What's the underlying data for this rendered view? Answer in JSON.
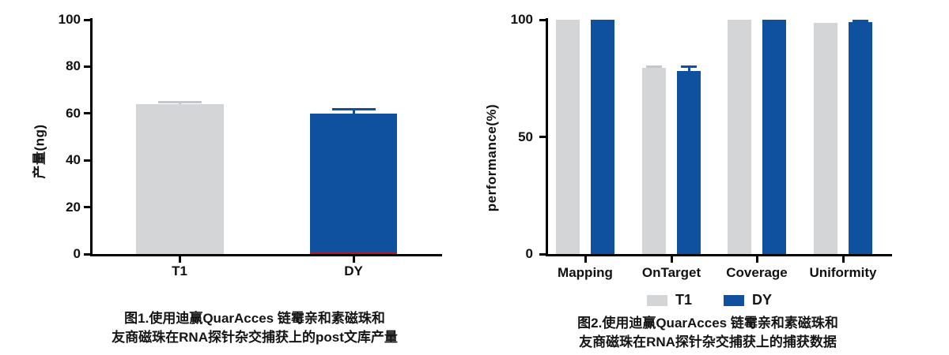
{
  "chart_data": [
    {
      "type": "bar",
      "ylabel": "产量(ng)",
      "ylim": [
        0,
        100
      ],
      "yticks": [
        0,
        20,
        40,
        60,
        80,
        100
      ],
      "grid": false,
      "categories": [
        "T1",
        "DY"
      ],
      "values": [
        64,
        60
      ],
      "errors": [
        1,
        2
      ],
      "bar_colors": [
        "#d3d5d7",
        "#10519f"
      ],
      "error_colors": [
        "#c3c6ca",
        "#10519f"
      ],
      "base_strip_color": "#a81e22",
      "base_strip_on": "DY",
      "title_line1": "图1.使用迪赢QuarAcces 链霉亲和素磁珠和",
      "title_line2": "友商磁珠在RNA探针杂交捕获上的post文库产量"
    },
    {
      "type": "bar",
      "ylabel": "performance(%)",
      "ylim": [
        0,
        100
      ],
      "yticks": [
        0,
        50,
        100
      ],
      "grid": false,
      "legend_position": "bottom",
      "categories": [
        "Mapping",
        "OnTarget",
        "Coverage",
        "Uniformity"
      ],
      "series": [
        {
          "name": "T1",
          "color": "#d3d5d7",
          "error_color": "#c3c6ca",
          "values": [
            100,
            79.5,
            100,
            98.5
          ],
          "errors": [
            0,
            0.8,
            0,
            0
          ]
        },
        {
          "name": "DY",
          "color": "#10519f",
          "error_color": "#10519f",
          "values": [
            100,
            78,
            100,
            99
          ],
          "errors": [
            0,
            2,
            0,
            0.6
          ]
        }
      ],
      "title_line1": "图2.使用迪赢QuarAcces 链霉亲和素磁珠和",
      "title_line2": "友商磁珠在RNA探针杂交捕获上的捕获数据"
    }
  ]
}
